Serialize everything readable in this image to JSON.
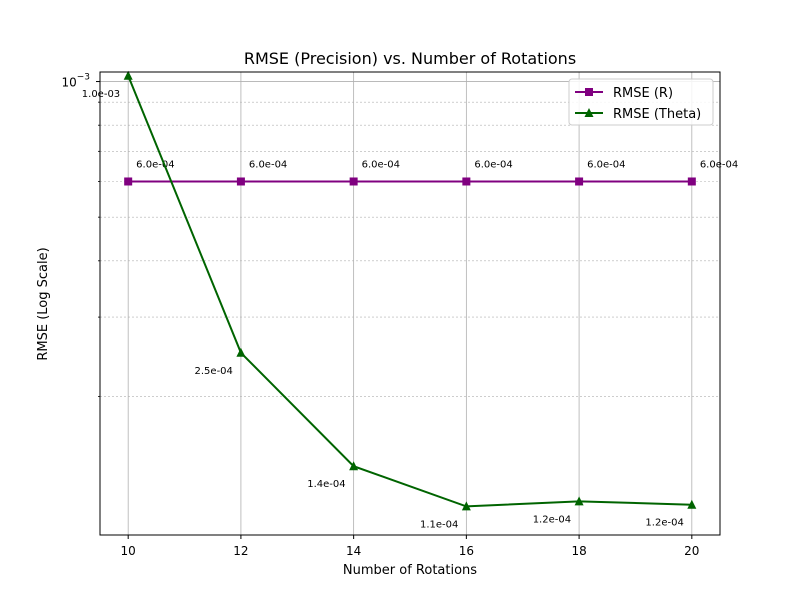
{
  "chart_data": {
    "type": "line",
    "title": "RMSE (Precision) vs. Number of Rotations",
    "xlabel": "Number of Rotations",
    "ylabel": "RMSE (Log Scale)",
    "x": [
      10,
      12,
      14,
      16,
      18,
      20
    ],
    "x_ticks": [
      "10",
      "12",
      "14",
      "16",
      "18",
      "20"
    ],
    "y_scale": "log",
    "ylim": [
      9.85e-05,
      0.00105
    ],
    "y_tick_major": {
      "base": "10",
      "exponent": "−3",
      "value": 0.001
    },
    "grid": true,
    "legend_position": "top-right",
    "series": [
      {
        "name": "RMSE (R)",
        "color": "#800080",
        "marker": "square",
        "values": [
          0.0006,
          0.0006,
          0.0006,
          0.0006,
          0.0006,
          0.0006
        ],
        "labels": [
          "6.0e-04",
          "6.0e-04",
          "6.0e-04",
          "6.0e-04",
          "6.0e-04",
          "6.0e-04"
        ]
      },
      {
        "name": "RMSE (Theta)",
        "color": "#006400",
        "marker": "triangle",
        "values": [
          0.00103,
          0.00025,
          0.00014,
          0.000114,
          0.000117,
          0.000115
        ],
        "labels": [
          "1.0e-03",
          "2.5e-04",
          "1.4e-04",
          "1.1e-04",
          "1.2e-04",
          "1.2e-04"
        ]
      }
    ]
  }
}
